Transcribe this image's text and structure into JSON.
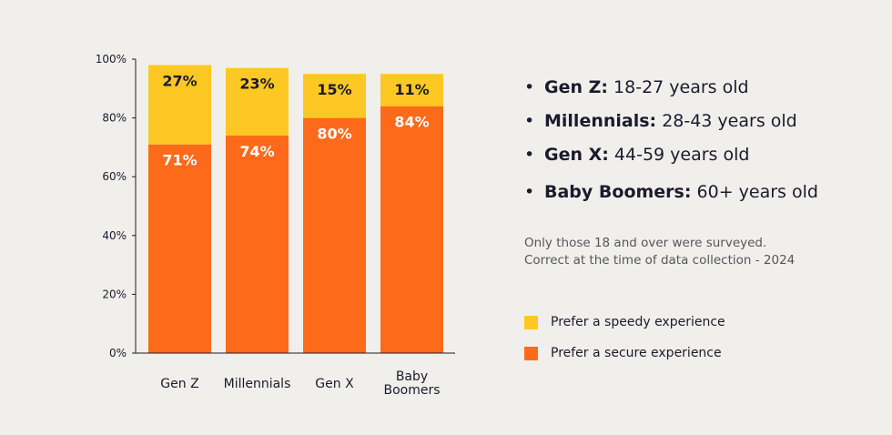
{
  "chart_data": {
    "type": "bar",
    "stacked": true,
    "categories": [
      [
        "Gen Z"
      ],
      [
        "Millennials"
      ],
      [
        "Gen X"
      ],
      [
        "Baby",
        "Boomers"
      ]
    ],
    "series": [
      {
        "name": "Prefer a secure experience",
        "color": "#fd6a1a",
        "values": [
          71,
          74,
          80,
          84
        ],
        "labels": [
          "71%",
          "74%",
          "80%",
          "84%"
        ]
      },
      {
        "name": "Prefer a speedy experience",
        "color": "#fdc823",
        "values": [
          27,
          23,
          15,
          11
        ],
        "labels": [
          "27%",
          "23%",
          "15%",
          "11%"
        ]
      }
    ],
    "ylim": [
      0,
      100
    ],
    "yticks": [
      0,
      20,
      40,
      60,
      80,
      100
    ],
    "ytick_labels": [
      "0%",
      "20%",
      "40%",
      "60%",
      "80%",
      "100%"
    ],
    "grid": false,
    "legend_position": "right"
  },
  "info": {
    "bullets": [
      {
        "term": "Gen Z:",
        "desc": "18-27 years old"
      },
      {
        "term": "Millennials:",
        "desc": "28-43 years old"
      },
      {
        "term": "Gen X:",
        "desc": "44-59 years old"
      },
      {
        "term": "Baby Boomers:",
        "desc": "60+ years old"
      }
    ],
    "note_line1": "Only those 18 and over were surveyed.",
    "note_line2": "Correct at the time of data collection - 2024"
  },
  "legend": [
    {
      "label": "Prefer a speedy experience",
      "color": "#fdc823"
    },
    {
      "label": "Prefer a secure experience",
      "color": "#fd6a1a"
    }
  ]
}
